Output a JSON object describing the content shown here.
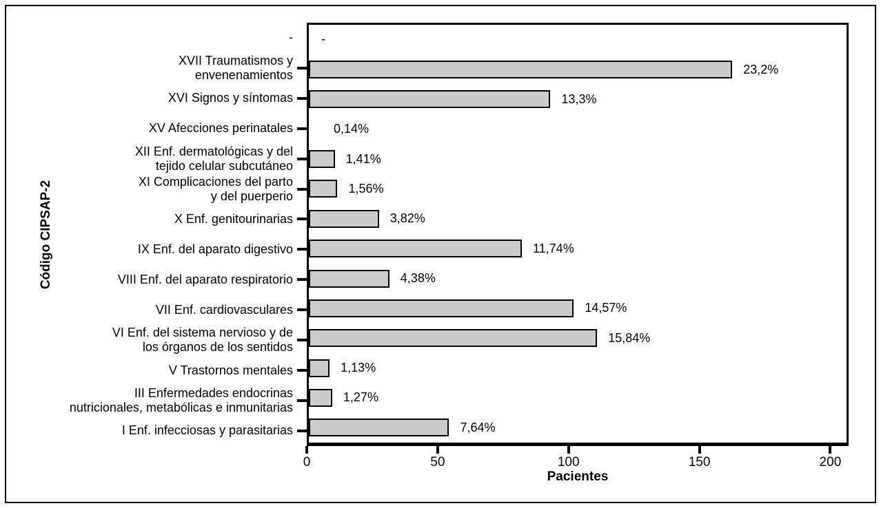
{
  "figure": {
    "background": "#ffffff",
    "frame_color": "#000000"
  },
  "chart_data": {
    "type": "bar",
    "orientation": "horizontal",
    "title": "",
    "xlabel": "Pacientes",
    "ylabel": "Código CIPSAP-2",
    "xlim": [
      0,
      207
    ],
    "xticks": [
      0,
      50,
      100,
      150,
      200
    ],
    "grid": false,
    "legend": false,
    "bar_color": "#cccccc",
    "bar_border_color": "#000000",
    "rows": [
      {
        "label_lines": [
          "-"
        ],
        "has_tick": false,
        "patients": null,
        "percent": null,
        "percent_label": "-"
      },
      {
        "label_lines": [
          "XVII Traumatismos y",
          "envenenamientos"
        ],
        "has_tick": true,
        "patients": 163,
        "percent": 23.2,
        "percent_label": "23,2%"
      },
      {
        "label_lines": [
          "XVI Signos y síntomas"
        ],
        "has_tick": true,
        "patients": 93,
        "percent": 13.3,
        "percent_label": "13,3%"
      },
      {
        "label_lines": [
          "XV Afecciones perinatales"
        ],
        "has_tick": true,
        "patients": 1,
        "percent": 0.14,
        "percent_label": "0,14%"
      },
      {
        "label_lines": [
          "XII Enf. dermatológicas y del",
          "tejido celular subcutáneo"
        ],
        "has_tick": true,
        "patients": 10,
        "percent": 1.41,
        "percent_label": "1,41%"
      },
      {
        "label_lines": [
          "XI Complicaciones del parto",
          "y del puerperio"
        ],
        "has_tick": true,
        "patients": 11,
        "percent": 1.56,
        "percent_label": "1,56%"
      },
      {
        "label_lines": [
          "X Enf. genitourinarias"
        ],
        "has_tick": true,
        "patients": 27,
        "percent": 3.82,
        "percent_label": "3,82%"
      },
      {
        "label_lines": [
          "IX Enf. del aparato digestivo"
        ],
        "has_tick": true,
        "patients": 82,
        "percent": 11.74,
        "percent_label": "11,74%"
      },
      {
        "label_lines": [
          "VIII Enf. del aparato respiratorio"
        ],
        "has_tick": true,
        "patients": 31,
        "percent": 4.38,
        "percent_label": "4,38%"
      },
      {
        "label_lines": [
          "VII Enf. cardiovasculares"
        ],
        "has_tick": true,
        "patients": 102,
        "percent": 14.57,
        "percent_label": "14,57%"
      },
      {
        "label_lines": [
          "VI Enf. del sistema nervioso y de",
          "los órganos de los sentidos"
        ],
        "has_tick": true,
        "patients": 111,
        "percent": 15.84,
        "percent_label": "15,84%"
      },
      {
        "label_lines": [
          "V Trastornos mentales"
        ],
        "has_tick": true,
        "patients": 8,
        "percent": 1.13,
        "percent_label": "1,13%"
      },
      {
        "label_lines": [
          "III Enfermedades endocrinas",
          "nutricionales, metabólicas e inmunitarias"
        ],
        "has_tick": true,
        "patients": 9,
        "percent": 1.27,
        "percent_label": "1,27%"
      },
      {
        "label_lines": [
          "I Enf. infecciosas y parasitarias"
        ],
        "has_tick": true,
        "patients": 54,
        "percent": 7.64,
        "percent_label": "7,64%"
      }
    ]
  }
}
